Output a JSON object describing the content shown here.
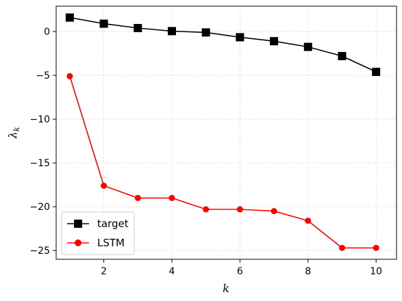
{
  "chart_data": {
    "type": "line",
    "title": "",
    "xlabel": "k",
    "ylabel": "λ",
    "ylabel_subscript": "k",
    "xlim": [
      0.6,
      10.6
    ],
    "ylim": [
      -26.0,
      2.9
    ],
    "xticks": [
      2,
      4,
      6,
      8,
      10
    ],
    "yticks": [
      0,
      -5,
      -10,
      -15,
      -20,
      -25
    ],
    "ytick_labels": [
      "0",
      "−5",
      "−10",
      "−15",
      "−20",
      "−25"
    ],
    "grid": true,
    "legend_position": "lower-left",
    "x": [
      1,
      2,
      3,
      4,
      5,
      6,
      7,
      8,
      9,
      10
    ],
    "series": [
      {
        "name": "target",
        "color": "#000000",
        "marker": "square",
        "values": [
          1.6,
          0.9,
          0.4,
          0.05,
          -0.1,
          -0.65,
          -1.1,
          -1.75,
          -2.8,
          -4.6
        ]
      },
      {
        "name": "LSTM",
        "color": "#ff0000",
        "marker": "circle",
        "values": [
          -5.1,
          -17.6,
          -19.0,
          -19.0,
          -20.3,
          -20.3,
          -20.5,
          -21.6,
          -24.7,
          -24.7
        ]
      }
    ]
  }
}
